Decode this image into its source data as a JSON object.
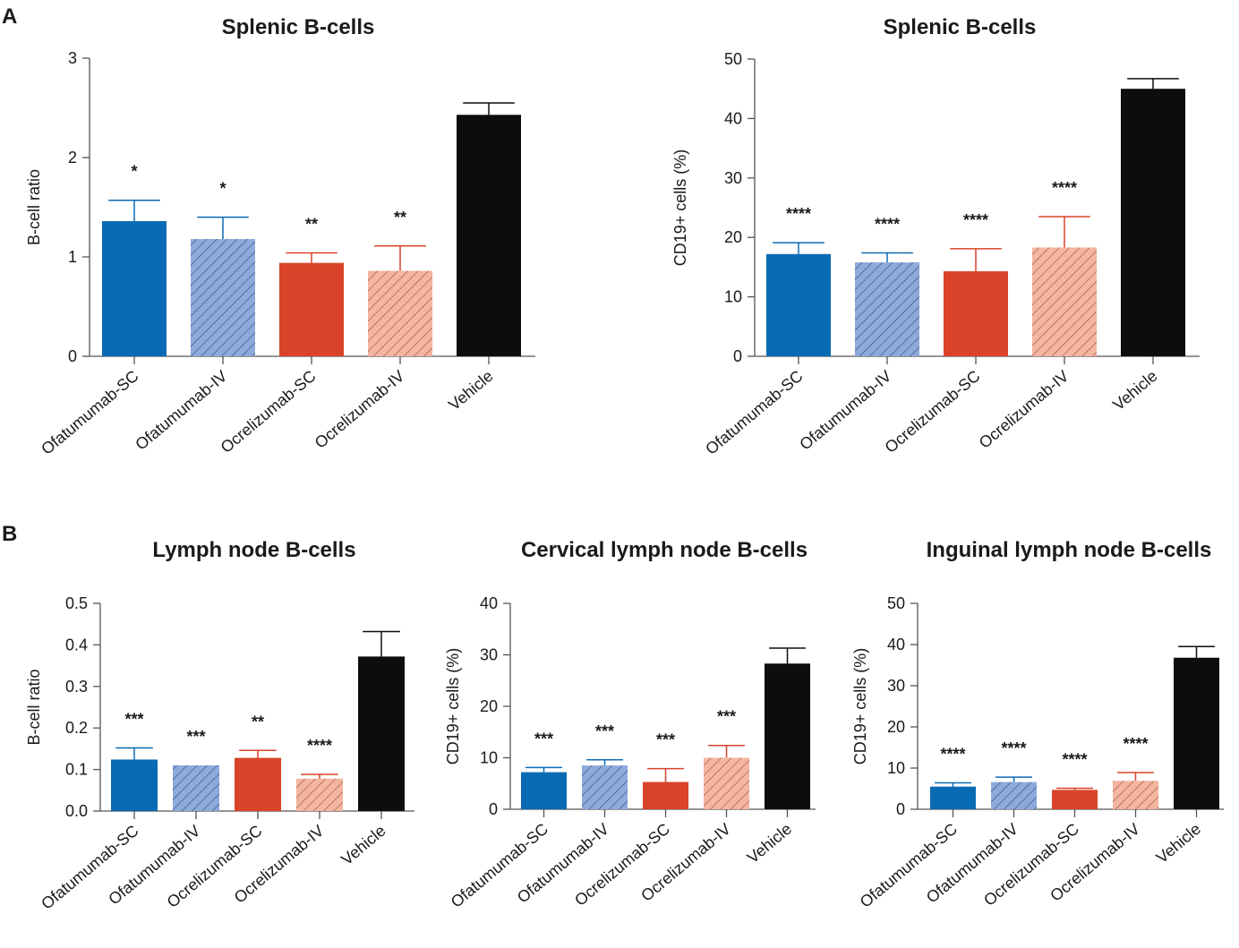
{
  "panels": {
    "a": "A",
    "b": "B"
  },
  "colors": {
    "Ofatumumab-SC": "#0a6bb5",
    "Ofatumumab-IV": "#8eaadb",
    "Ocrelizumab-SC": "#d9432a",
    "Ocrelizumab-IV": "#f3b6a0",
    "Vehicle": "#0d0d0d",
    "axis": "#555555"
  },
  "chart_data": [
    {
      "type": "bar",
      "title": "Splenic B-cells",
      "ylabel": "B-cell ratio",
      "ylim": [
        0,
        3
      ],
      "yticks": [
        0,
        1,
        2,
        3
      ],
      "ytick_labels": [
        "0",
        "1",
        "2",
        "3"
      ],
      "categories": [
        "Ofatumumab-SC",
        "Ofatumumab-IV",
        "Ocrelizumab-SC",
        "Ocrelizumab-IV",
        "Vehicle"
      ],
      "values": [
        1.36,
        1.18,
        0.94,
        0.86,
        2.43
      ],
      "errors": [
        0.21,
        0.22,
        0.1,
        0.25,
        0.12
      ],
      "significance": [
        "*",
        "*",
        "**",
        "**",
        ""
      ]
    },
    {
      "type": "bar",
      "title": "Splenic B-cells",
      "ylabel": "CD19+ cells (%)",
      "ylim": [
        0,
        50
      ],
      "yticks": [
        0,
        10,
        20,
        30,
        40,
        50
      ],
      "ytick_labels": [
        "0",
        "10",
        "20",
        "30",
        "40",
        "50"
      ],
      "categories": [
        "Ofatumumab-SC",
        "Ofatumumab-IV",
        "Ocrelizumab-SC",
        "Ocrelizumab-IV",
        "Vehicle"
      ],
      "values": [
        17.2,
        15.8,
        14.3,
        18.3,
        45.0
      ],
      "errors": [
        1.9,
        1.6,
        3.8,
        5.2,
        1.7
      ],
      "significance": [
        "****",
        "****",
        "****",
        "****",
        ""
      ]
    },
    {
      "type": "bar",
      "title": "Lymph node B-cells",
      "ylabel": "B-cell ratio",
      "ylim": [
        0,
        0.5
      ],
      "yticks": [
        0,
        0.1,
        0.2,
        0.3,
        0.4,
        0.5
      ],
      "ytick_labels": [
        "0.0",
        "0.1",
        "0.2",
        "0.3",
        "0.4",
        "0.5"
      ],
      "categories": [
        "Ofatumumab-SC",
        "Ofatumumab-IV",
        "Ocrelizumab-SC",
        "Ocrelizumab-IV",
        "Vehicle"
      ],
      "values": [
        0.124,
        0.11,
        0.128,
        0.078,
        0.372
      ],
      "errors": [
        0.028,
        0.0,
        0.018,
        0.01,
        0.06
      ],
      "significance": [
        "***",
        "***",
        "**",
        "****",
        ""
      ]
    },
    {
      "type": "bar",
      "title": "Cervical lymph node B-cells",
      "ylabel": "CD19+ cells (%)",
      "ylim": [
        0,
        40
      ],
      "yticks": [
        0,
        10,
        20,
        30,
        40
      ],
      "ytick_labels": [
        "0",
        "10",
        "20",
        "30",
        "40"
      ],
      "categories": [
        "Ofatumumab-SC",
        "Ofatumumab-IV",
        "Ocrelizumab-SC",
        "Ocrelizumab-IV",
        "Vehicle"
      ],
      "values": [
        7.2,
        8.5,
        5.3,
        10.0,
        28.3
      ],
      "errors": [
        0.9,
        1.1,
        2.6,
        2.4,
        3.0
      ],
      "significance": [
        "***",
        "***",
        "***",
        "***",
        ""
      ]
    },
    {
      "type": "bar",
      "title": "Inguinal lymph node B-cells",
      "ylabel": "CD19+ cells (%)",
      "ylim": [
        0,
        50
      ],
      "yticks": [
        0,
        10,
        20,
        30,
        40,
        50
      ],
      "ytick_labels": [
        "0",
        "10",
        "20",
        "30",
        "40",
        "50"
      ],
      "categories": [
        "Ofatumumab-SC",
        "Ofatumumab-IV",
        "Ocrelizumab-SC",
        "Ocrelizumab-IV",
        "Vehicle"
      ],
      "values": [
        5.5,
        6.6,
        4.7,
        6.9,
        36.8
      ],
      "errors": [
        0.9,
        1.2,
        0.4,
        2.0,
        2.7
      ],
      "significance": [
        "****",
        "****",
        "****",
        "****",
        ""
      ]
    }
  ]
}
